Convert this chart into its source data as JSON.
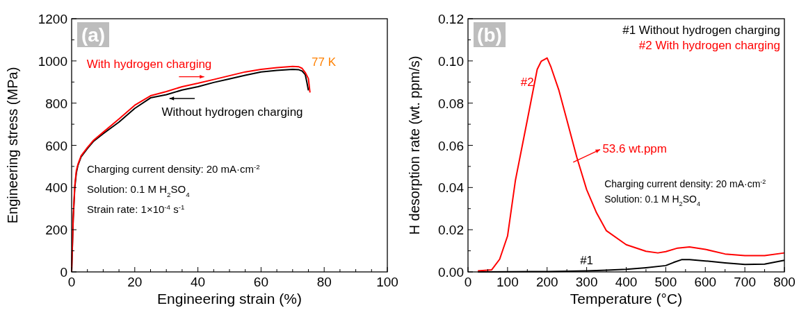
{
  "chart_data": [
    {
      "type": "line",
      "xlabel": "Engineering strain (%)",
      "ylabel": "Engineering stress (MPa)",
      "legend": "top",
      "xlim": [
        0,
        100
      ],
      "ylim": [
        0,
        1200
      ],
      "xticks": [
        0,
        {
          "value": 5,
          "label": null
        },
        20,
        {
          "value": 10,
          "label": null
        },
        {
          "value": 15,
          "label": null
        },
        {
          "value": 25,
          "label": null
        },
        {
          "value": 30,
          "label": null
        },
        {
          "value": 35,
          "label": null
        },
        40,
        {
          "value": 45,
          "label": null
        },
        {
          "value": 50,
          "label": null
        },
        {
          "value": 55,
          "label": null
        },
        60,
        {
          "value": 65,
          "label": null
        },
        {
          "value": 70,
          "label": null
        },
        {
          "value": 75,
          "label": null
        },
        80,
        {
          "value": 85,
          "label": null
        },
        {
          "value": 90,
          "label": null
        },
        {
          "value": 95,
          "label": null
        },
        100
      ],
      "yticks": [
        0,
        {
          "value": 100,
          "label": null
        },
        200,
        {
          "value": 300,
          "label": null
        },
        400,
        {
          "value": 500,
          "label": null
        },
        600,
        {
          "value": 700,
          "label": null
        },
        800,
        {
          "value": 900,
          "label": null
        },
        1000,
        {
          "value": 1100,
          "label": null
        },
        1200
      ],
      "series": [
        {
          "name": "Without hydrogen charging",
          "color": "#000000",
          "x": [
            0,
            0.5,
            1,
            1.5,
            2,
            3,
            5,
            7,
            10,
            15,
            20,
            25,
            30,
            35,
            40,
            45,
            50,
            55,
            60,
            65,
            70,
            72,
            73,
            74,
            74.5,
            75
          ],
          "values": [
            0,
            250,
            400,
            470,
            505,
            545,
            585,
            620,
            655,
            710,
            775,
            825,
            840,
            862,
            878,
            898,
            915,
            932,
            948,
            955,
            960,
            958,
            952,
            935,
            900,
            860
          ]
        },
        {
          "name": "With hydrogen charging",
          "color": "#ff0000",
          "x": [
            0,
            0.5,
            1,
            1.5,
            2,
            3,
            5,
            7,
            10,
            15,
            20,
            25,
            30,
            35,
            40,
            45,
            50,
            55,
            60,
            65,
            70,
            72,
            73,
            74,
            75,
            75.5
          ],
          "values": [
            0,
            260,
            410,
            480,
            510,
            550,
            590,
            625,
            662,
            725,
            790,
            835,
            855,
            878,
            894,
            912,
            930,
            948,
            960,
            968,
            974,
            972,
            965,
            945,
            916,
            850
          ]
        }
      ],
      "annotations": [
        "(a)",
        "77 K",
        "Charging current density: 20 mA·cm$^{-2}$",
        "Solution: 0.1 M H$_{2}$SO$_{4}$",
        "Strain rate: 1×10$^{-4}$ s$^{-1}$"
      ]
    },
    {
      "type": "line",
      "xlabel": "Temperature (°C)",
      "ylabel": "H desorption rate (wt. ppm/s)",
      "legend": "top right",
      "xlim": [
        0,
        800
      ],
      "ylim": [
        0,
        0.12
      ],
      "xticks": [
        0,
        {
          "value": 50,
          "label": null
        },
        100,
        {
          "value": 150,
          "label": null
        },
        200,
        {
          "value": 250,
          "label": null
        },
        300,
        {
          "value": 350,
          "label": null
        },
        400,
        {
          "value": 450,
          "label": null
        },
        500,
        {
          "value": 550,
          "label": null
        },
        600,
        {
          "value": 650,
          "label": null
        },
        700,
        {
          "value": 750,
          "label": null
        },
        800
      ],
      "yticks": [
        {
          "value": 0,
          "label": "0.00"
        },
        {
          "value": 0.01,
          "label": null
        },
        {
          "value": 0.02,
          "label": "0.02"
        },
        {
          "value": 0.03,
          "label": null
        },
        {
          "value": 0.04,
          "label": "0.04"
        },
        {
          "value": 0.05,
          "label": null
        },
        {
          "value": 0.06,
          "label": "0.06"
        },
        {
          "value": 0.07,
          "label": null
        },
        {
          "value": 0.08,
          "label": "0.08"
        },
        {
          "value": 0.09,
          "label": null
        },
        {
          "value": 0.1,
          "label": "0.10"
        },
        {
          "value": 0.11,
          "label": null
        },
        {
          "value": 0.12,
          "label": "0.12"
        }
      ],
      "series": [
        {
          "name": "#1 Without hydrogen charging",
          "color": "#000000",
          "x": [
            25,
            100,
            200,
            300,
            350,
            400,
            450,
            500,
            520,
            540,
            560,
            600,
            650,
            700,
            750,
            800
          ],
          "values": [
            0,
            0.0001,
            0.0002,
            0.0005,
            0.0008,
            0.0012,
            0.002,
            0.003,
            0.0045,
            0.0058,
            0.0058,
            0.0052,
            0.0043,
            0.0035,
            0.0037,
            0.0055
          ]
        },
        {
          "name": "#2 With hydrogen charging",
          "color": "#ff0000",
          "x": [
            25,
            60,
            80,
            100,
            120,
            150,
            175,
            185,
            200,
            210,
            230,
            250,
            275,
            300,
            325,
            350,
            400,
            450,
            480,
            500,
            530,
            560,
            600,
            650,
            700,
            750,
            800
          ],
          "values": [
            0.0005,
            0.001,
            0.006,
            0.017,
            0.0435,
            0.072,
            0.096,
            0.0998,
            0.1014,
            0.097,
            0.086,
            0.072,
            0.0544,
            0.039,
            0.028,
            0.0195,
            0.0129,
            0.0098,
            0.009,
            0.0096,
            0.0113,
            0.0118,
            0.0107,
            0.0085,
            0.0077,
            0.0077,
            0.009
          ]
        }
      ],
      "annotations": [
        "(b)",
        "#2",
        "#1",
        "53.6 wt.ppm",
        "Charging current density: 20 mA·cm$^{-2}$",
        "Solution: 0.1 M H$_{2}$SO$_{4}$"
      ]
    }
  ]
}
